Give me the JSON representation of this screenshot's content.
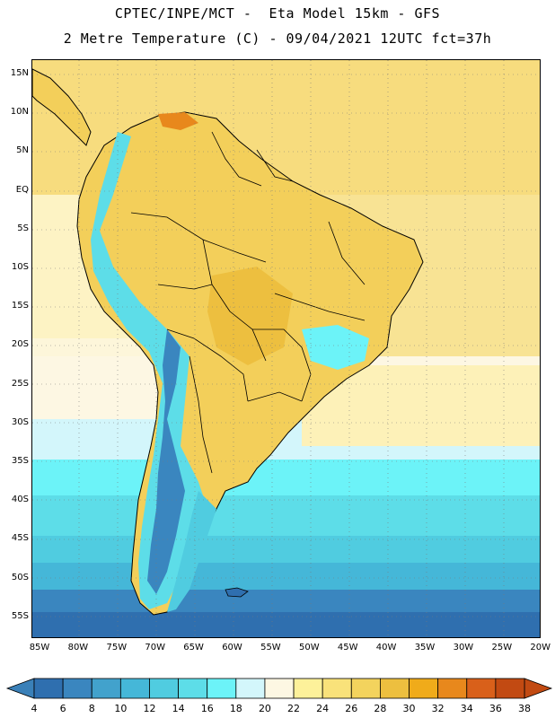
{
  "header": {
    "line1": "CPTEC/INPE/MCT -  Eta Model 15km - GFS",
    "line2": "2 Metre Temperature (C) - 09/04/2021 12UTC fct=37h"
  },
  "map": {
    "lat_ticks": [
      "15N",
      "10N",
      "5N",
      "EQ",
      "5S",
      "10S",
      "15S",
      "20S",
      "25S",
      "30S",
      "35S",
      "40S",
      "45S",
      "50S",
      "55S"
    ],
    "lon_ticks": [
      "85W",
      "80W",
      "75W",
      "70W",
      "65W",
      "60W",
      "55W",
      "50W",
      "45W",
      "40W",
      "35W",
      "30W",
      "25W",
      "20W"
    ]
  },
  "colorbar": {
    "labels": [
      "4",
      "6",
      "8",
      "10",
      "12",
      "14",
      "16",
      "18",
      "20",
      "22",
      "24",
      "26",
      "28",
      "30",
      "32",
      "34",
      "36",
      "38"
    ],
    "low_color": "#3a80b8",
    "high_color": "#c24a12",
    "colors": [
      "#2f6faf",
      "#3a86bf",
      "#42a2cc",
      "#45b7d8",
      "#50cce0",
      "#5ddde8",
      "#6cf3f8",
      "#d3f6fb",
      "#fdf7e3",
      "#fdf19a",
      "#f9e27a",
      "#f3d35d",
      "#edbf3f",
      "#f0ab1a",
      "#e8881c",
      "#d9601a",
      "#c24a12"
    ]
  }
}
